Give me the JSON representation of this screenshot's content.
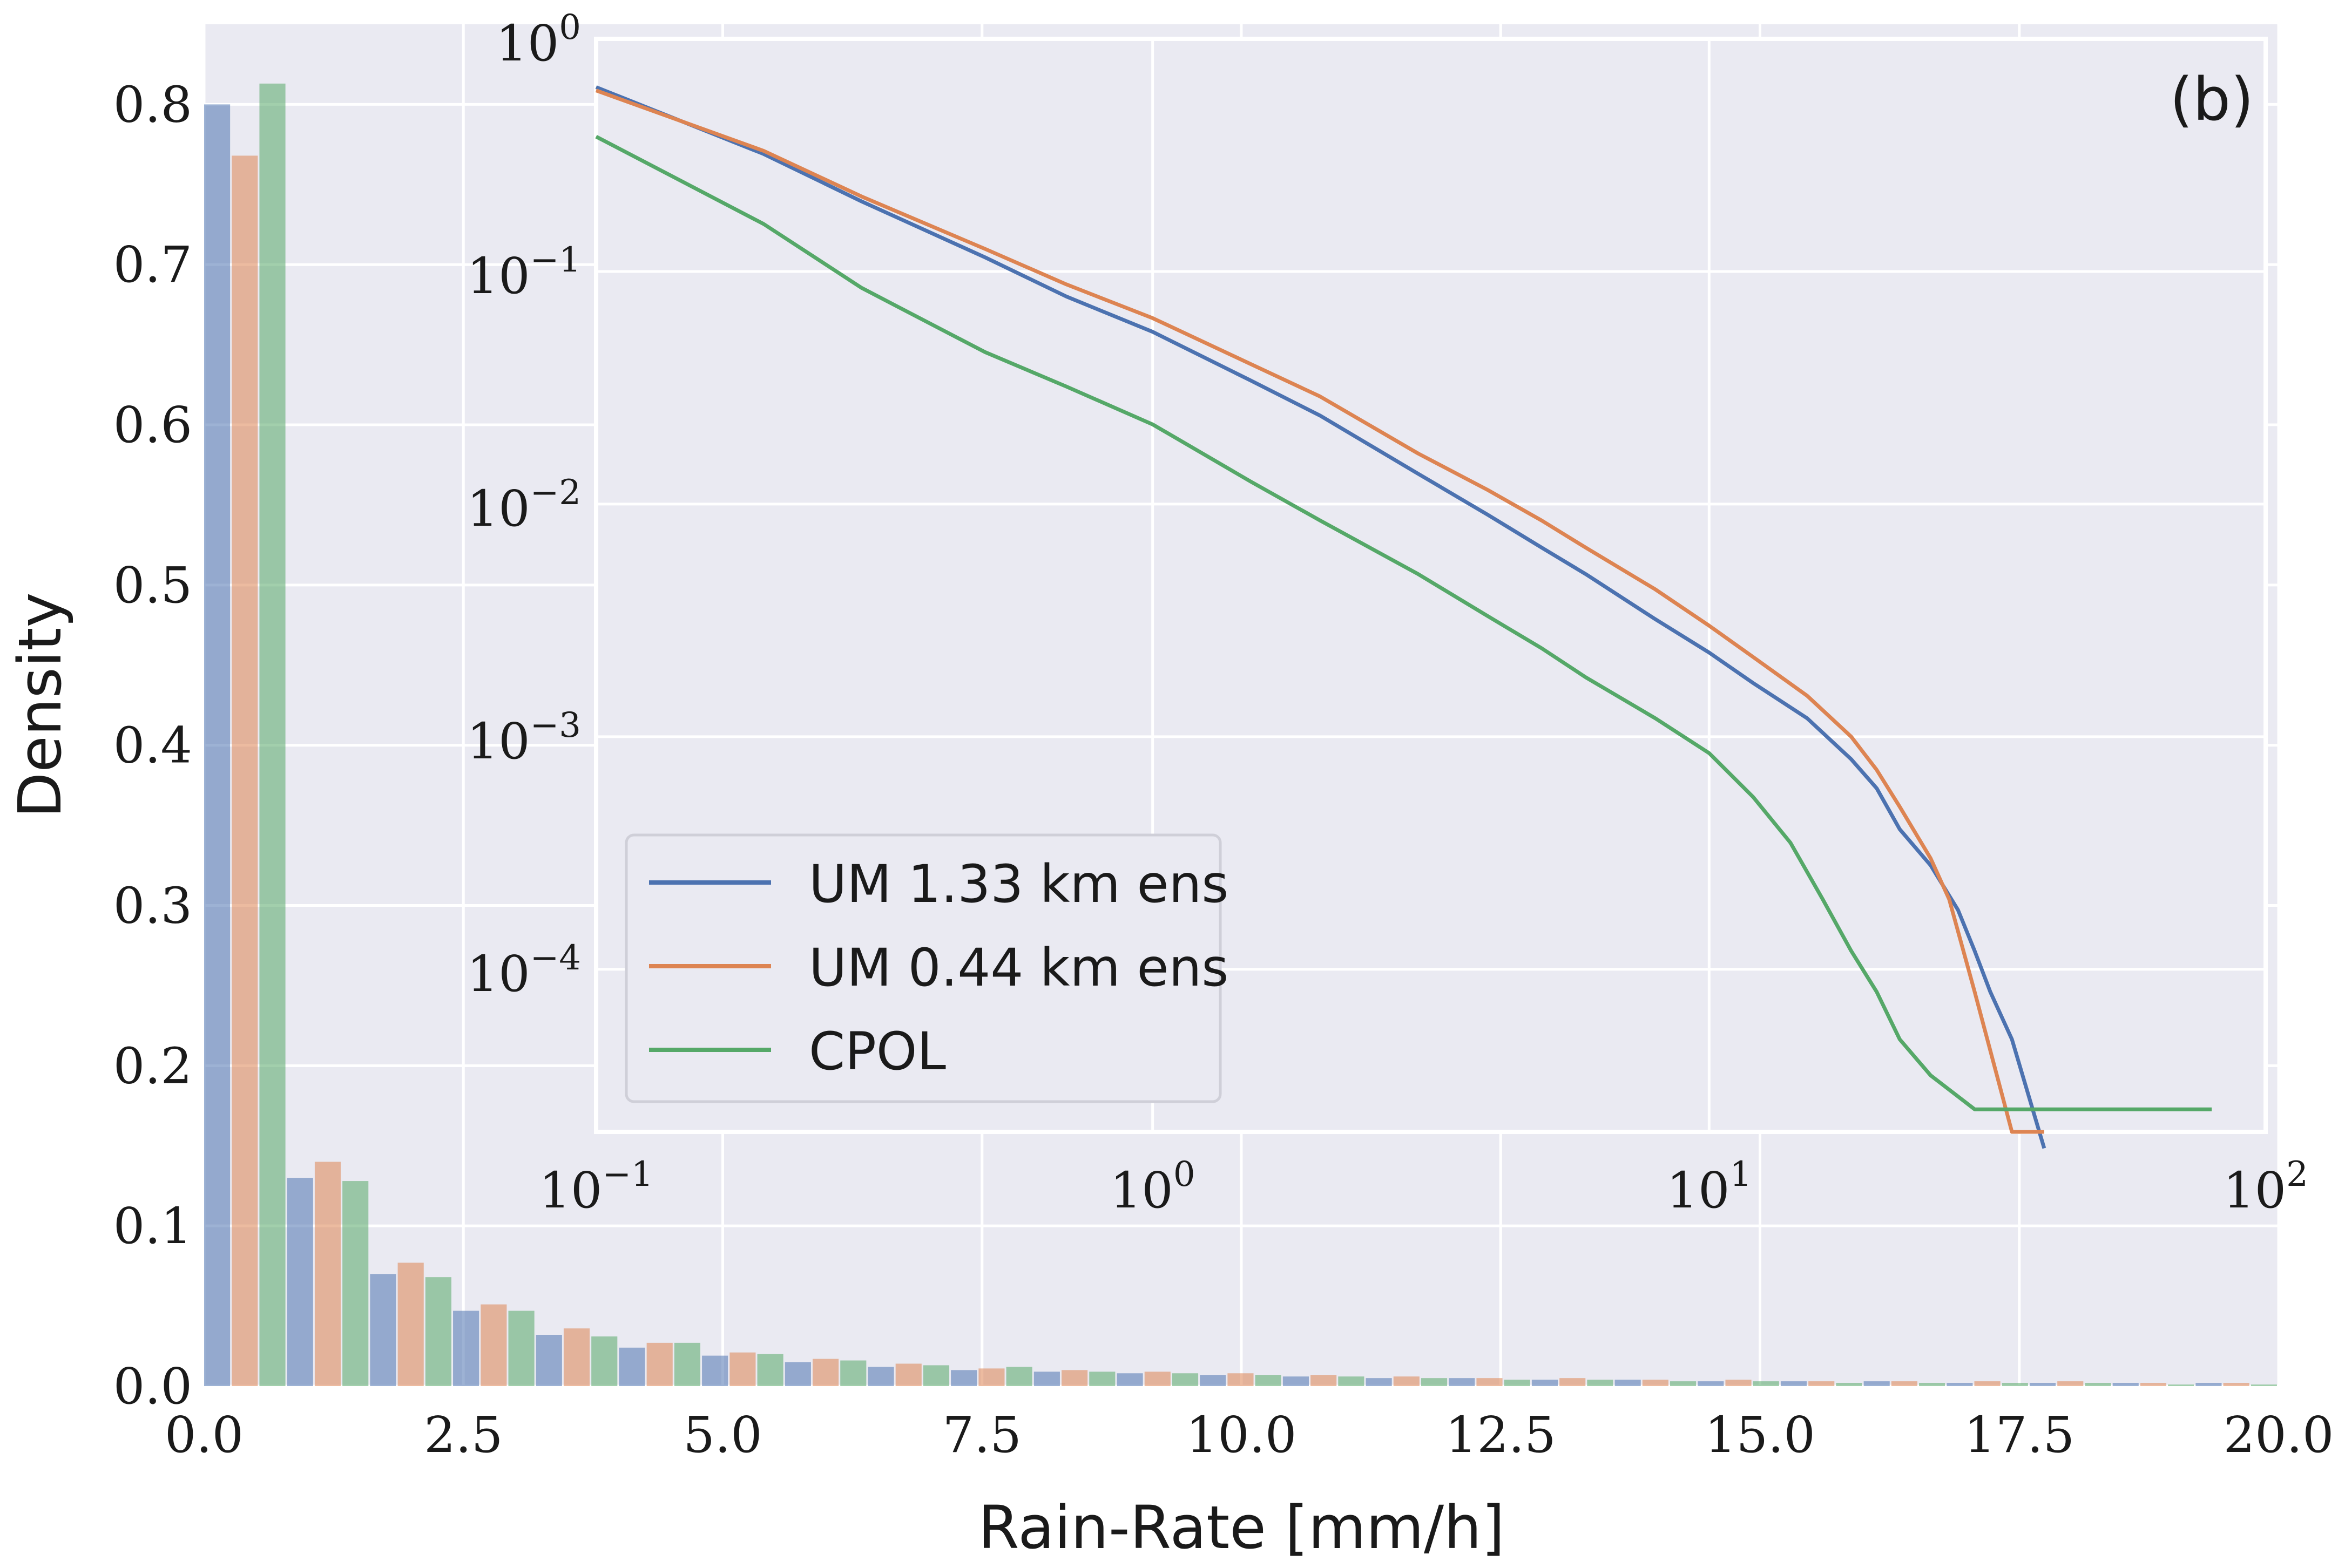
{
  "panel_label": "(b)",
  "colors": {
    "plot_bg": "#eaeaf2",
    "grid": "#ffffff",
    "um133": "#4c72b0",
    "um044": "#dd8452",
    "cpol": "#55a868"
  },
  "chart_data": [
    {
      "type": "bar",
      "title": "",
      "xlabel": "Rain-Rate [mm/h]",
      "ylabel": "Density",
      "xlim": [
        0,
        20
      ],
      "ylim": [
        0,
        0.85
      ],
      "xticks": [
        0,
        2.5,
        5,
        7.5,
        10,
        12.5,
        15,
        17.5,
        20
      ],
      "xtick_labels": [
        "0.0",
        "2.5",
        "5.0",
        "7.5",
        "10.0",
        "12.5",
        "15.0",
        "17.5",
        "20.0"
      ],
      "yticks": [
        0,
        0.1,
        0.2,
        0.3,
        0.4,
        0.5,
        0.6,
        0.7,
        0.8
      ],
      "ytick_labels": [
        "0.0",
        "0.1",
        "0.2",
        "0.3",
        "0.4",
        "0.5",
        "0.6",
        "0.7",
        "0.8"
      ],
      "grid": true,
      "bin_width": 0.8,
      "bin_starts": [
        0,
        0.8,
        1.6,
        2.4,
        3.2,
        4.0,
        4.8,
        5.6,
        6.4,
        7.2,
        8.0,
        8.8,
        9.6,
        10.4,
        11.2,
        12.0,
        12.8,
        13.6,
        14.4,
        15.2,
        16.0,
        16.8,
        17.6,
        18.4,
        19.2
      ],
      "series": [
        {
          "name": "UM 1.33 km ens",
          "color": "#4c72b0",
          "values": [
            0.8,
            0.13,
            0.07,
            0.047,
            0.032,
            0.024,
            0.019,
            0.015,
            0.012,
            0.01,
            0.009,
            0.008,
            0.007,
            0.006,
            0.005,
            0.005,
            0.004,
            0.004,
            0.003,
            0.003,
            0.003,
            0.002,
            0.002,
            0.002,
            0.002
          ]
        },
        {
          "name": "UM 0.44 km ens",
          "color": "#dd8452",
          "values": [
            0.768,
            0.14,
            0.077,
            0.051,
            0.036,
            0.027,
            0.021,
            0.017,
            0.014,
            0.011,
            0.01,
            0.009,
            0.008,
            0.007,
            0.006,
            0.005,
            0.005,
            0.004,
            0.004,
            0.003,
            0.003,
            0.003,
            0.003,
            0.002,
            0.002
          ]
        },
        {
          "name": "CPOL",
          "color": "#55a868",
          "values": [
            0.813,
            0.128,
            0.068,
            0.047,
            0.031,
            0.027,
            0.02,
            0.016,
            0.013,
            0.012,
            0.009,
            0.008,
            0.007,
            0.006,
            0.005,
            0.004,
            0.004,
            0.003,
            0.003,
            0.002,
            0.002,
            0.002,
            0.002,
            0.001,
            0.001
          ]
        }
      ]
    },
    {
      "type": "line",
      "title": "",
      "xscale": "log",
      "yscale": "log",
      "xlim": [
        0.1,
        100
      ],
      "ylim": [
        2e-05,
        1
      ],
      "xticks": [
        0.1,
        1,
        10,
        100
      ],
      "xtick_labels": [
        {
          "base": "10",
          "exp": "−1"
        },
        {
          "base": "10",
          "exp": "0"
        },
        {
          "base": "10",
          "exp": "1"
        },
        {
          "base": "10",
          "exp": "2"
        }
      ],
      "yticks": [
        1,
        0.1,
        0.01,
        0.001,
        0.0001
      ],
      "ytick_labels": [
        {
          "base": "10",
          "exp": "0"
        },
        {
          "base": "10",
          "exp": "−1"
        },
        {
          "base": "10",
          "exp": "−2"
        },
        {
          "base": "10",
          "exp": "−3"
        },
        {
          "base": "10",
          "exp": "−4"
        }
      ],
      "grid": true,
      "legend_position": "lower-left",
      "series": [
        {
          "name": "UM 1.33 km ens",
          "color": "#4c72b0",
          "x": [
            0.1,
            0.2,
            0.3,
            0.5,
            0.7,
            1,
            1.5,
            2,
            3,
            4,
            5,
            6,
            8,
            10,
            12,
            15,
            18,
            20,
            22,
            25,
            28,
            30,
            32,
            35,
            40
          ],
          "y": [
            0.62,
            0.32,
            0.2,
            0.115,
            0.078,
            0.055,
            0.034,
            0.024,
            0.0135,
            0.009,
            0.0065,
            0.005,
            0.0032,
            0.0023,
            0.0017,
            0.0012,
            0.0008,
            0.0006,
            0.0004,
            0.00028,
            0.00018,
            0.00012,
            8e-05,
            5e-05,
            1.7e-05
          ]
        },
        {
          "name": "UM 0.44 km ens",
          "color": "#dd8452",
          "x": [
            0.1,
            0.2,
            0.3,
            0.5,
            0.7,
            1,
            1.5,
            2,
            3,
            4,
            5,
            6,
            8,
            10,
            12,
            15,
            18,
            20,
            22,
            25,
            27,
            30,
            35,
            40
          ],
          "y": [
            0.6,
            0.33,
            0.21,
            0.125,
            0.088,
            0.063,
            0.04,
            0.029,
            0.0165,
            0.0115,
            0.0085,
            0.0065,
            0.0043,
            0.003,
            0.0022,
            0.0015,
            0.001,
            0.00072,
            0.0005,
            0.0003,
            0.0002,
            8e-05,
            2e-05,
            2e-05
          ]
        },
        {
          "name": "CPOL",
          "color": "#55a868",
          "x": [
            0.1,
            0.2,
            0.3,
            0.5,
            0.7,
            1,
            1.5,
            2,
            3,
            4,
            5,
            6,
            8,
            10,
            12,
            14,
            16,
            18,
            20,
            22,
            25,
            30,
            40,
            60,
            80
          ],
          "y": [
            0.38,
            0.16,
            0.085,
            0.045,
            0.032,
            0.022,
            0.0125,
            0.0085,
            0.005,
            0.0033,
            0.0024,
            0.0018,
            0.0012,
            0.00085,
            0.00055,
            0.00035,
            0.0002,
            0.00012,
            8e-05,
            5e-05,
            3.5e-05,
            2.5e-05,
            2.5e-05,
            2.5e-05,
            2.5e-05
          ]
        }
      ]
    }
  ]
}
